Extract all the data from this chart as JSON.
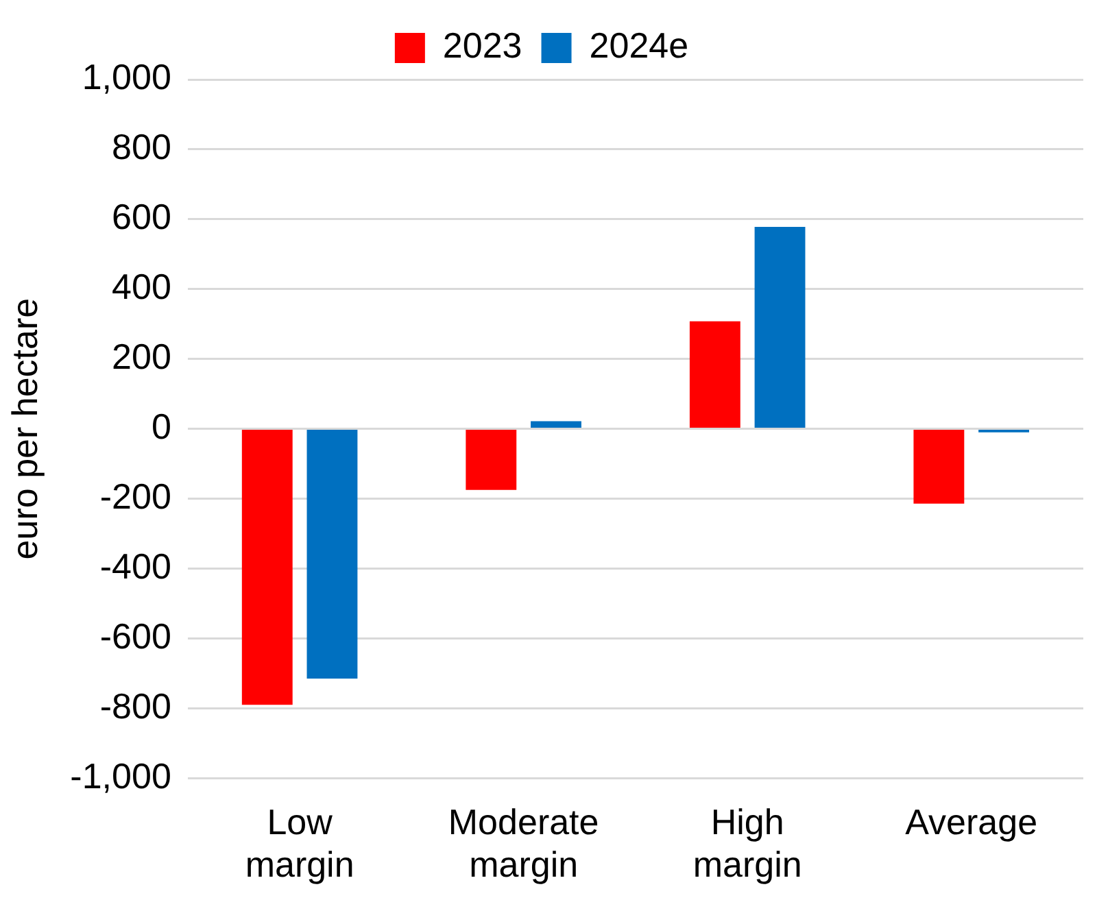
{
  "chart_data": {
    "type": "bar",
    "ylabel": "euro per hectare",
    "categories": [
      "Low margin",
      "Moderate margin",
      "High margin",
      "Average"
    ],
    "series": [
      {
        "name": "2023",
        "color": "#ff0000",
        "values": [
          -790,
          -175,
          308,
          -214
        ]
      },
      {
        "name": "2024e",
        "color": "#0070c0",
        "values": [
          -715,
          22,
          578,
          -10
        ]
      }
    ],
    "ylim": [
      -1000,
      1000
    ],
    "yticks": [
      {
        "value": -1000,
        "label": "-1,000"
      },
      -800,
      -600,
      -400,
      -200,
      0,
      200,
      400,
      600,
      800,
      {
        "value": 1000,
        "label": "1,000"
      }
    ],
    "grid": "y",
    "legend": "top"
  }
}
